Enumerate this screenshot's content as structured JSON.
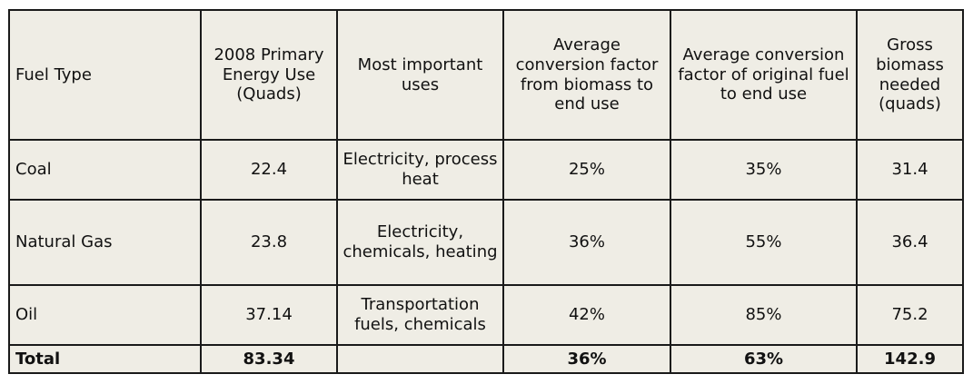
{
  "table": {
    "headers": [
      "Fuel Type",
      "2008 Primary Energy Use (Quads)",
      "Most important uses",
      "Average conversion factor from biomass to end use",
      "Average conversion factor of original fuel to end use",
      "Gross biomass needed (quads)"
    ],
    "rows": [
      [
        "Coal",
        "22.4",
        "Electricity, process heat",
        "25%",
        "35%",
        "31.4"
      ],
      [
        "Natural Gas",
        "23.8",
        "Electricity, chemicals, heating",
        "36%",
        "55%",
        "36.4"
      ],
      [
        "Oil",
        "37.14",
        "Transportation fuels, chemicals",
        "42%",
        "85%",
        "75.2"
      ]
    ],
    "total": [
      "Total",
      "83.34",
      "",
      "36%",
      "63%",
      "142.9"
    ]
  },
  "colors": {
    "cell_background": "#efede5",
    "border": "#1a1a1a",
    "text": "#111111"
  }
}
